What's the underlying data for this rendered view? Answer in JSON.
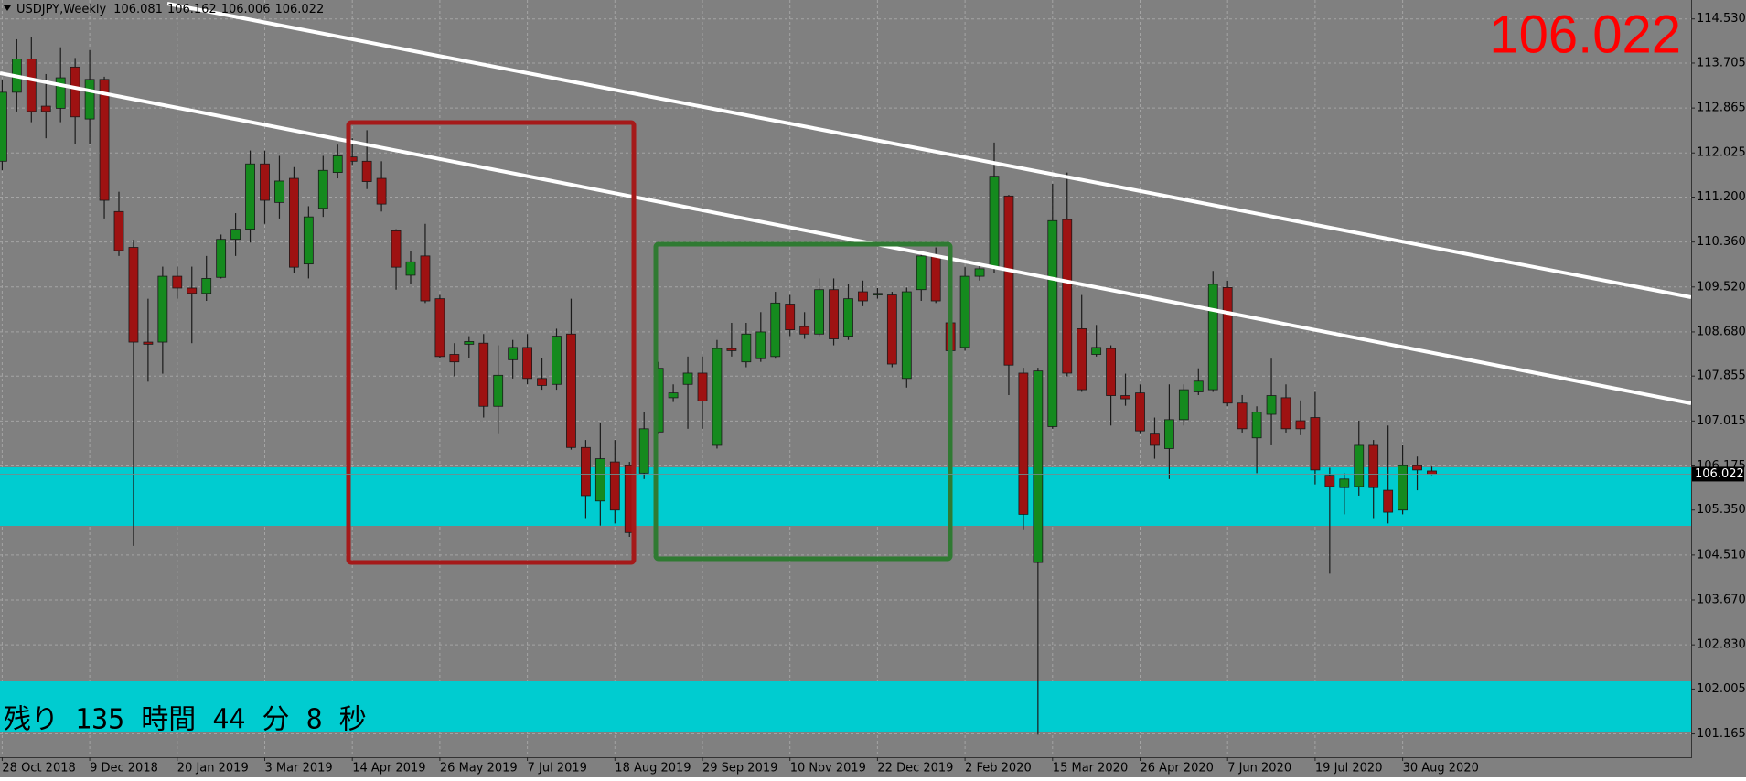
{
  "chart_data": {
    "type": "candlestick",
    "title": "USDJPY,Weekly",
    "header_ohlc": [
      106.081,
      106.162,
      106.006,
      106.022
    ],
    "current_price": 106.022,
    "countdown": "残り 135 時間 44 分 8 秒",
    "categories": [
      "28 Oct 2018",
      null,
      null,
      null,
      null,
      null,
      "9 Dec 2018",
      null,
      null,
      null,
      null,
      null,
      "20 Jan 2019",
      null,
      null,
      null,
      null,
      null,
      "3 Mar 2019",
      null,
      null,
      null,
      null,
      null,
      "14 Apr 2019",
      null,
      null,
      null,
      null,
      null,
      "26 May 2019",
      null,
      null,
      null,
      null,
      null,
      "7 Jul 2019",
      null,
      null,
      null,
      null,
      null,
      "18 Aug 2019",
      null,
      null,
      null,
      null,
      null,
      "29 Sep 2019",
      null,
      null,
      null,
      null,
      null,
      "10 Nov 2019",
      null,
      null,
      null,
      null,
      null,
      "22 Dec 2019",
      null,
      null,
      null,
      null,
      null,
      "2 Feb 2020",
      null,
      null,
      null,
      null,
      null,
      "15 Mar 2020",
      null,
      null,
      null,
      null,
      null,
      "26 Apr 2020",
      null,
      null,
      null,
      null,
      null,
      "7 Jun 2020",
      null,
      null,
      null,
      null,
      null,
      "19 Jul 2020",
      null,
      null,
      null,
      null,
      null,
      "30 Aug 2020",
      null,
      null
    ],
    "ohlc": {
      "open": [
        111.87,
        113.16,
        113.78,
        112.9,
        112.86,
        113.63,
        112.66,
        113.4,
        110.93,
        110.26,
        108.49,
        108.49,
        109.72,
        109.5,
        109.4,
        109.7,
        110.41,
        110.6,
        111.82,
        111.1,
        111.55,
        109.95,
        110.99,
        111.66,
        111.95,
        111.87,
        111.55,
        110.57,
        109.74,
        110.1,
        109.3,
        108.26,
        108.45,
        108.47,
        107.29,
        108.16,
        108.39,
        107.81,
        107.7,
        108.64,
        106.52,
        105.52,
        106.25,
        106.18,
        106.04,
        106.81,
        107.45,
        107.7,
        107.91,
        106.56,
        108.37,
        108.12,
        108.18,
        108.22,
        109.2,
        108.78,
        108.64,
        109.47,
        108.6,
        109.43,
        109.37,
        109.37,
        107.81,
        109.47,
        110.1,
        108.85,
        108.39,
        109.72,
        109.89,
        111.22,
        107.91,
        104.37,
        106.91,
        110.78,
        108.74,
        108.26,
        108.37,
        107.49,
        107.54,
        106.77,
        106.5,
        107.04,
        107.56,
        107.6,
        109.51,
        107.35,
        106.7,
        107.14,
        107.45,
        107.02,
        107.08,
        106.0,
        105.77,
        105.79,
        106.56,
        105.72,
        105.35,
        106.18,
        106.081
      ],
      "high": [
        113.4,
        114.15,
        114.2,
        113.5,
        114.0,
        113.8,
        113.95,
        113.45,
        111.3,
        110.4,
        109.3,
        109.9,
        109.9,
        109.9,
        110.1,
        110.5,
        110.9,
        112.07,
        112.07,
        111.97,
        111.76,
        111.03,
        111.97,
        112.18,
        112.3,
        112.45,
        111.87,
        110.6,
        110.2,
        110.7,
        109.37,
        108.47,
        108.6,
        108.64,
        108.43,
        108.53,
        108.64,
        108.2,
        108.74,
        109.3,
        106.66,
        106.97,
        106.66,
        106.25,
        107.18,
        108.12,
        107.7,
        108.22,
        108.22,
        108.53,
        108.85,
        108.85,
        109.05,
        109.43,
        109.37,
        109.05,
        109.68,
        109.68,
        109.57,
        109.64,
        109.5,
        109.43,
        109.51,
        110.2,
        110.26,
        109.05,
        109.89,
        109.99,
        112.22,
        111.24,
        108.01,
        108.01,
        111.45,
        111.66,
        109.37,
        108.81,
        108.43,
        107.9,
        107.7,
        107.08,
        107.7,
        107.7,
        108.0,
        109.82,
        109.64,
        107.5,
        107.29,
        108.18,
        107.7,
        107.4,
        107.56,
        106.14,
        106.04,
        107.02,
        106.66,
        106.93,
        106.56,
        106.35,
        106.162
      ],
      "low": [
        111.7,
        112.8,
        112.6,
        112.3,
        112.6,
        112.2,
        112.2,
        110.8,
        110.1,
        104.68,
        107.75,
        107.9,
        109.3,
        108.47,
        109.26,
        109.68,
        110.1,
        110.35,
        110.7,
        110.8,
        109.78,
        109.68,
        110.83,
        111.55,
        111.8,
        111.35,
        110.93,
        109.47,
        109.57,
        109.22,
        108.18,
        107.85,
        108.2,
        107.08,
        106.77,
        107.81,
        107.7,
        107.6,
        107.6,
        106.48,
        105.2,
        105.06,
        105.1,
        104.85,
        105.93,
        106.77,
        107.37,
        106.87,
        106.87,
        106.5,
        108.22,
        108.02,
        108.12,
        108.18,
        108.6,
        108.55,
        108.6,
        108.43,
        108.53,
        109.16,
        109.3,
        108.02,
        107.64,
        109.26,
        109.22,
        108.22,
        108.33,
        109.64,
        109.78,
        107.5,
        104.99,
        101.15,
        106.87,
        107.85,
        107.56,
        108.22,
        106.93,
        107.3,
        106.77,
        106.31,
        105.93,
        106.93,
        107.5,
        107.56,
        107.29,
        106.8,
        106.04,
        106.56,
        106.8,
        106.75,
        105.83,
        104.16,
        105.27,
        105.62,
        105.2,
        105.1,
        105.27,
        105.72,
        106.006
      ],
      "close": [
        113.16,
        113.78,
        112.8,
        112.8,
        113.43,
        112.7,
        113.4,
        111.14,
        110.2,
        108.49,
        108.45,
        109.72,
        109.5,
        109.4,
        109.68,
        110.41,
        110.6,
        111.82,
        111.14,
        111.5,
        109.89,
        110.83,
        111.7,
        111.97,
        111.87,
        111.49,
        111.07,
        109.89,
        109.99,
        109.26,
        108.22,
        108.12,
        108.5,
        107.29,
        107.87,
        108.39,
        107.81,
        107.68,
        108.6,
        106.52,
        105.62,
        106.31,
        105.35,
        104.93,
        106.87,
        108.0,
        107.54,
        107.91,
        107.39,
        108.37,
        108.33,
        108.64,
        108.68,
        109.22,
        108.72,
        108.64,
        109.47,
        108.55,
        109.3,
        109.26,
        109.4,
        108.08,
        109.43,
        110.1,
        109.26,
        108.33,
        109.72,
        109.86,
        111.59,
        108.06,
        105.27,
        107.95,
        110.76,
        107.91,
        107.6,
        108.39,
        107.49,
        107.43,
        106.83,
        106.56,
        107.04,
        107.6,
        107.76,
        109.57,
        107.35,
        106.87,
        107.18,
        107.49,
        106.87,
        106.87,
        106.1,
        105.79,
        105.93,
        106.56,
        105.77,
        105.31,
        106.18,
        106.1,
        106.022
      ]
    },
    "up_color": "#158a1e",
    "down_color": "#9e1212",
    "background": "#808080",
    "grid": true,
    "ylim": [
      100.73,
      114.884
    ],
    "yticks": [
      {
        "value": 114.53,
        "label": "114.530"
      },
      113.705,
      112.865,
      112.025,
      {
        "value": 111.2,
        "label": "111.200"
      },
      {
        "value": 110.36,
        "label": "110.360"
      },
      {
        "value": 109.52,
        "label": "109.520"
      },
      {
        "value": 108.68,
        "label": "108.680"
      },
      107.855,
      107.015,
      106.175,
      {
        "value": 105.35,
        "label": "105.350"
      },
      {
        "value": 104.51,
        "label": "104.510"
      },
      {
        "value": 103.67,
        "label": "103.670"
      },
      {
        "value": 102.83,
        "label": "102.830"
      },
      102.005,
      101.165
    ]
  }
}
